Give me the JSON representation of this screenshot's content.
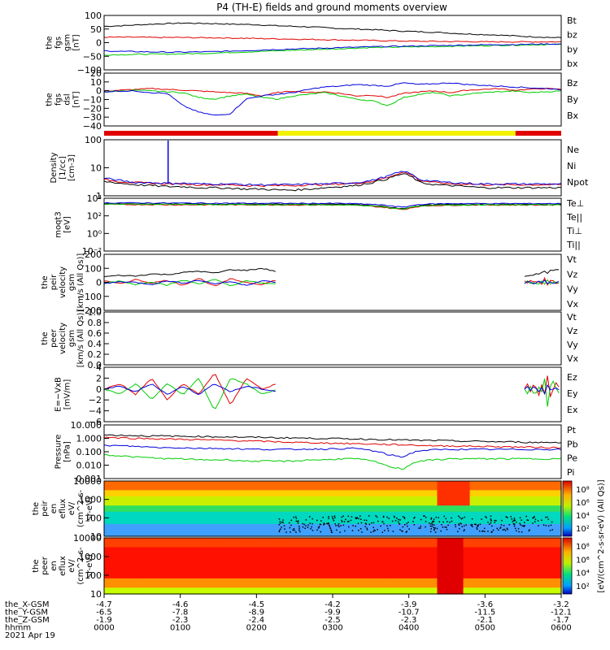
{
  "title": "P4 (TH-E) fields and ground moments overview",
  "colors": {
    "black": "#000000",
    "red": "#e00000",
    "green": "#00cc00",
    "blue": "#0000dd",
    "yellow": "#f2f200"
  },
  "chart_data": [
    {
      "type": "line",
      "id": "fgs_gsm",
      "ylabel": [
        "the",
        "fgs",
        "gsm",
        "[nT]"
      ],
      "ylim": [
        -100,
        100
      ],
      "ticks": [
        "100",
        "50",
        "0",
        "−50",
        "−100"
      ],
      "series": [
        {
          "name": "Bt",
          "color": "#000000",
          "values": [
            60,
            62,
            65,
            68,
            70,
            72,
            71,
            70,
            68,
            67,
            65,
            62,
            60,
            58,
            55,
            52,
            50,
            48,
            45,
            42,
            40,
            38,
            35,
            32,
            30,
            28,
            25,
            22,
            20,
            18
          ]
        },
        {
          "name": "bz",
          "color": "#e00000",
          "values": [
            20,
            20,
            20,
            19,
            19,
            19,
            18,
            18,
            17,
            16,
            15,
            14,
            13,
            12,
            11,
            10,
            9,
            8,
            7,
            6,
            5,
            5,
            4,
            4,
            3,
            3,
            3,
            3,
            3,
            3
          ]
        },
        {
          "name": "by",
          "color": "#00cc00",
          "values": [
            -45,
            -44,
            -43,
            -42,
            -42,
            -41,
            -40,
            -38,
            -36,
            -34,
            -32,
            -30,
            -28,
            -26,
            -24,
            -22,
            -20,
            -18,
            -17,
            -16,
            -15,
            -14,
            -13,
            -12,
            -11,
            -10,
            -9,
            -8,
            -7,
            -6
          ]
        },
        {
          "name": "bx",
          "color": "#0000dd",
          "values": [
            -30,
            -32,
            -33,
            -34,
            -35,
            -35,
            -34,
            -33,
            -31,
            -29,
            -27,
            -25,
            -23,
            -22,
            -20,
            -18,
            -17,
            -15,
            -14,
            -13,
            -12,
            -11,
            -10,
            -9,
            -8,
            -7,
            -7,
            -6,
            -5,
            -5
          ]
        }
      ]
    },
    {
      "type": "line",
      "id": "fgs_dsl",
      "ylabel": [
        "the",
        "fgs",
        "dsl",
        "[nT]"
      ],
      "ylim": [
        -45,
        20
      ],
      "ticks": [
        "20",
        "10",
        "0",
        "−10",
        "−20",
        "−30",
        "−40"
      ],
      "series": [
        {
          "name": "Bz",
          "color": "#e00000",
          "values": [
            -2,
            -1,
            0,
            1,
            0,
            -1,
            -2,
            -3,
            -4,
            -5,
            -8,
            -4,
            -2,
            -4,
            -3,
            -5,
            -8,
            -7,
            -10,
            -5,
            -3,
            -2,
            -4,
            -1,
            0,
            1,
            -1,
            0,
            1,
            0
          ]
        },
        {
          "name": "By",
          "color": "#00cc00",
          "values": [
            -3,
            -2,
            -1,
            -2,
            -3,
            -4,
            -10,
            -12,
            -8,
            -6,
            -10,
            -12,
            -8,
            -6,
            -4,
            -8,
            -12,
            -14,
            -20,
            -10,
            -6,
            -4,
            -8,
            -6,
            -4,
            -3,
            -2,
            -4,
            -3,
            -2
          ]
        },
        {
          "name": "Bx",
          "color": "#0000dd",
          "values": [
            -3,
            -2,
            -2,
            -4,
            -5,
            -20,
            -28,
            -32,
            -30,
            -12,
            -8,
            -6,
            -4,
            0,
            3,
            4,
            6,
            5,
            4,
            8,
            6,
            7,
            8,
            6,
            5,
            4,
            3,
            2,
            1,
            0
          ]
        }
      ]
    },
    {
      "type": "line",
      "id": "density",
      "log": true,
      "ylabel": [
        "Density",
        "[1/cc]",
        "[cm-3]"
      ],
      "ylim": [
        0.1,
        200
      ],
      "ticks": [
        "100",
        "10",
        "1"
      ],
      "series": [
        {
          "name": "Ne",
          "color": "#e00000",
          "values": [
            0.9,
            0.7,
            0.6,
            0.55,
            0.5,
            0.5,
            0.45,
            0.45,
            0.45,
            0.4,
            0.4,
            0.4,
            0.4,
            0.45,
            0.45,
            0.5,
            0.55,
            0.7,
            1.2,
            2.5,
            0.8,
            0.6,
            0.5,
            0.5,
            0.45,
            0.45,
            0.45,
            0.45,
            0.45,
            0.45
          ]
        },
        {
          "name": "Ni",
          "color": "#000000",
          "values": [
            0.7,
            0.55,
            0.45,
            0.4,
            0.35,
            0.35,
            0.3,
            0.3,
            0.28,
            0.25,
            0.25,
            0.22,
            0.22,
            0.25,
            0.3,
            0.35,
            0.4,
            0.6,
            1.0,
            2.0,
            0.6,
            0.45,
            0.4,
            0.35,
            0.3,
            0.3,
            0.3,
            0.3,
            0.3,
            0.3
          ]
        },
        {
          "name": "Npot",
          "color": "#0000dd",
          "values": [
            1.1,
            0.8,
            0.6,
            0.6,
            0.55,
            0.55,
            0.5,
            0.5,
            0.5,
            0.45,
            0.45,
            0.45,
            0.45,
            0.5,
            0.5,
            0.55,
            0.6,
            0.8,
            1.4,
            2.8,
            0.9,
            0.7,
            0.6,
            0.55,
            0.5,
            0.5,
            0.5,
            0.5,
            0.5,
            0.5
          ]
        }
      ],
      "spike": {
        "x_fraction": 0.14,
        "value": 180
      }
    },
    {
      "type": "line",
      "id": "temperature",
      "log": true,
      "ylabel": [
        "moqt3",
        "[eV]"
      ],
      "ylim": [
        0.01,
        10000
      ],
      "ticks": [
        "10⁴",
        "10²",
        "10⁰",
        "10⁻²"
      ],
      "series": [
        {
          "name": "Te⊥",
          "color": "#e00000",
          "values": [
            2000,
            2000,
            1900,
            1900,
            1800,
            1800,
            1800,
            1800,
            1800,
            1800,
            1800,
            1800,
            1700,
            1700,
            1700,
            1700,
            1500,
            1200,
            800,
            500,
            1200,
            1500,
            1600,
            1700,
            1700,
            1700,
            1700,
            1700,
            1700,
            1700
          ]
        },
        {
          "name": "Te||",
          "color": "#000000",
          "values": [
            2500,
            2400,
            2400,
            2300,
            2300,
            2300,
            2200,
            2200,
            2200,
            2200,
            2200,
            2200,
            2100,
            2100,
            2100,
            2100,
            1900,
            1500,
            1000,
            600,
            1500,
            1800,
            2000,
            2000,
            2000,
            2000,
            2000,
            2000,
            2000,
            2000
          ]
        },
        {
          "name": "Ti⊥",
          "color": "#0000dd",
          "values": [
            3000,
            3000,
            2900,
            2900,
            2800,
            2800,
            2800,
            2700,
            2700,
            2700,
            2700,
            2700,
            2600,
            2600,
            2600,
            2600,
            2400,
            2000,
            1500,
            900,
            2000,
            2300,
            2500,
            2500,
            2500,
            2500,
            2500,
            2500,
            2500,
            2500
          ]
        },
        {
          "name": "Ti||",
          "color": "#00cc00",
          "values": [
            2200,
            2200,
            2100,
            2100,
            2000,
            2000,
            2000,
            1900,
            1900,
            1900,
            1900,
            1900,
            1800,
            1800,
            1800,
            1800,
            1600,
            1300,
            900,
            550,
            1300,
            1600,
            1700,
            1800,
            1800,
            1800,
            1800,
            1800,
            1800,
            1800
          ]
        }
      ]
    },
    {
      "type": "line",
      "id": "peir_velocity",
      "ylabel": [
        "the",
        "peir",
        "velocity",
        "gsm",
        "[km/s (All Qs)]"
      ],
      "ylim": [
        -200,
        200
      ],
      "ticks": [
        "200",
        "100",
        "0",
        "−100",
        "−200"
      ],
      "coverage": [
        [
          0,
          0.38
        ],
        [
          0.92,
          1.0
        ]
      ],
      "series": [
        {
          "name": "Vt",
          "color": "#000000",
          "values": [
            40,
            50,
            45,
            60,
            55,
            70,
            80,
            65,
            90,
            85,
            100,
            75
          ]
        },
        {
          "name": "Vz",
          "color": "#e00000",
          "values": [
            10,
            -10,
            20,
            -5,
            15,
            -20,
            30,
            -30,
            25,
            0,
            -15,
            20
          ]
        },
        {
          "name": "Vy",
          "color": "#00cc00",
          "values": [
            -5,
            10,
            -15,
            5,
            -20,
            15,
            -10,
            20,
            -25,
            10,
            -5,
            -15
          ]
        },
        {
          "name": "Vx",
          "color": "#0000dd",
          "values": [
            -10,
            5,
            0,
            -15,
            10,
            -5,
            15,
            -10,
            5,
            -20,
            10,
            0
          ]
        }
      ]
    },
    {
      "type": "line",
      "id": "peer_velocity",
      "ylabel": [
        "the",
        "peer",
        "velocity",
        "gsm",
        "[km/s (All Qs)]"
      ],
      "ylim": [
        0,
        1
      ],
      "ticks": [
        "1.0",
        "0.8",
        "0.6",
        "0.4",
        "0.2",
        "0.0"
      ],
      "series": [
        {
          "name": "Vt",
          "color": "#000000",
          "values": []
        },
        {
          "name": "Vz",
          "color": "#e00000",
          "values": []
        },
        {
          "name": "Vy",
          "color": "#00cc00",
          "values": []
        },
        {
          "name": "Vx",
          "color": "#0000dd",
          "values": []
        }
      ]
    },
    {
      "type": "line",
      "id": "efield",
      "ylabel": [
        "E=−VxB",
        "[mV/m]"
      ],
      "ylim": [
        -6,
        4
      ],
      "ticks": [
        "4",
        "2",
        "0",
        "−2",
        "−4",
        "−6"
      ],
      "coverage": [
        [
          0,
          0.38
        ],
        [
          0.92,
          1.0
        ]
      ],
      "series": [
        {
          "name": "Ez",
          "color": "#e00000",
          "values": [
            0,
            1,
            -1,
            2,
            -2,
            1,
            -1,
            3,
            -3,
            2,
            0,
            1
          ]
        },
        {
          "name": "Ey",
          "color": "#00cc00",
          "values": [
            0,
            -1,
            1,
            -2,
            1,
            -1,
            2,
            -4,
            2,
            1,
            -1,
            0
          ]
        },
        {
          "name": "Ex",
          "color": "#0000dd",
          "values": [
            0,
            0.5,
            -0.5,
            1,
            -1,
            0.5,
            -1,
            1,
            -0.5,
            0.5,
            0,
            -0.5
          ]
        }
      ]
    },
    {
      "type": "line",
      "id": "pressure",
      "log": true,
      "ylabel": [
        "Pressure",
        "[nPa]"
      ],
      "ylim": [
        0.001,
        10
      ],
      "ticks": [
        "10.000",
        "1.000",
        "0.100",
        "0.010",
        "0.001"
      ],
      "series": [
        {
          "name": "Pt",
          "color": "#000000",
          "values": [
            1.8,
            1.7,
            1.6,
            1.5,
            1.5,
            1.4,
            1.4,
            1.3,
            1.3,
            1.2,
            1.2,
            1.1,
            1.1,
            1.0,
            1.0,
            0.95,
            0.9,
            0.85,
            0.8,
            0.75,
            0.7,
            0.7,
            0.65,
            0.6,
            0.6,
            0.55,
            0.55,
            0.5,
            0.5,
            0.5
          ]
        },
        {
          "name": "Pb",
          "color": "#e00000",
          "values": [
            1.2,
            1.1,
            1.0,
            0.95,
            0.9,
            0.85,
            0.8,
            0.75,
            0.7,
            0.65,
            0.6,
            0.55,
            0.5,
            0.48,
            0.45,
            0.42,
            0.4,
            0.38,
            0.35,
            0.33,
            0.3,
            0.28,
            0.27,
            0.26,
            0.25,
            0.24,
            0.23,
            0.22,
            0.21,
            0.2
          ]
        },
        {
          "name": "Pe",
          "color": "#00cc00",
          "values": [
            0.06,
            0.05,
            0.04,
            0.035,
            0.03,
            0.03,
            0.025,
            0.025,
            0.025,
            0.02,
            0.02,
            0.02,
            0.02,
            0.025,
            0.025,
            0.03,
            0.03,
            0.02,
            0.008,
            0.005,
            0.02,
            0.025,
            0.03,
            0.03,
            0.03,
            0.03,
            0.03,
            0.03,
            0.03,
            0.03
          ]
        },
        {
          "name": "Pi",
          "color": "#0000dd",
          "values": [
            0.3,
            0.28,
            0.25,
            0.22,
            0.2,
            0.2,
            0.18,
            0.18,
            0.17,
            0.16,
            0.15,
            0.15,
            0.15,
            0.16,
            0.16,
            0.17,
            0.18,
            0.12,
            0.06,
            0.04,
            0.12,
            0.14,
            0.15,
            0.15,
            0.15,
            0.15,
            0.15,
            0.15,
            0.15,
            0.15
          ]
        }
      ]
    },
    {
      "type": "heatmap",
      "id": "peir_en_eflux",
      "ylabel": [
        "the",
        "peir",
        "en",
        "eflux",
        "eV/",
        "(cm^2-s-",
        "sr-eV)"
      ],
      "ylim": [
        5,
        30000
      ],
      "ticks": [
        "10000",
        "1000",
        "100",
        "10"
      ]
    },
    {
      "type": "heatmap",
      "id": "peer_en_eflux",
      "ylabel": [
        "the",
        "peer",
        "en",
        "eflux",
        "eV/",
        "(cm^2-s-",
        "sr-eV)"
      ],
      "ylim": [
        5,
        30000
      ],
      "ticks": [
        "10000",
        "1000",
        "100",
        "10"
      ]
    }
  ],
  "colorbar": {
    "ticks": [
      "10⁸",
      "10⁶",
      "10⁴",
      "10²"
    ],
    "label": "[eV/(cm^2-s-sr-eV) (All Qs)]"
  },
  "xaxis": {
    "rows": [
      {
        "label": "the_X-GSM",
        "values": [
          "-4.7",
          "-4.6",
          "-4.5",
          "-4.2",
          "-3.9",
          "-3.6",
          "-3.2"
        ]
      },
      {
        "label": "the_Y-GSM",
        "values": [
          "-6.5",
          "-7.8",
          "-8.9",
          "-9.9",
          "-10.7",
          "-11.5",
          "-12.1"
        ]
      },
      {
        "label": "the_Z-GSM",
        "values": [
          "-1.9",
          "-2.3",
          "-2.4",
          "-2.5",
          "-2.3",
          "-2.1",
          "-1.7"
        ]
      },
      {
        "label": "hhmm",
        "values": [
          "0000",
          "0100",
          "0200",
          "0300",
          "0400",
          "0500",
          "0600"
        ]
      }
    ],
    "date": "2021 Apr 19"
  },
  "mode_bar": {
    "segments": [
      {
        "from": 0,
        "to": 0.38,
        "color": "#e00000"
      },
      {
        "from": 0.38,
        "to": 0.9,
        "color": "#f2f200"
      },
      {
        "from": 0.9,
        "to": 1.0,
        "color": "#e00000"
      }
    ]
  }
}
